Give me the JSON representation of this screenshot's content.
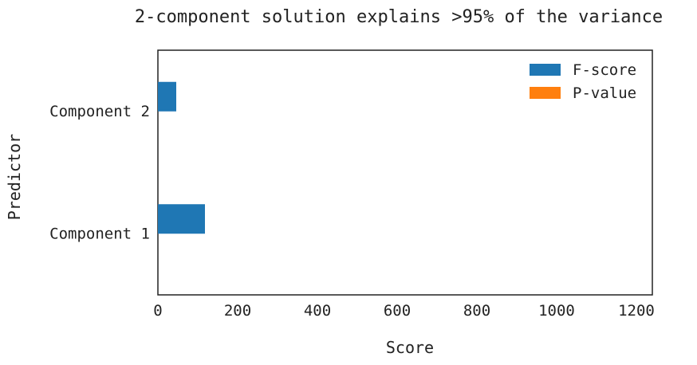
{
  "chart_data": {
    "type": "bar",
    "orientation": "horizontal",
    "title": "2-component solution explains >95% of the variance",
    "xlabel": "Score",
    "ylabel": "Predictor",
    "categories": [
      "Component 1",
      "Component 2"
    ],
    "series": [
      {
        "name": "F-score",
        "values": [
          118,
          46
        ],
        "color": "#1f77b4"
      },
      {
        "name": "P-value",
        "values": [
          0,
          0
        ],
        "color": "#ff7f0e"
      }
    ],
    "xlim": [
      0,
      1240
    ],
    "xticks": [
      0,
      200,
      400,
      600,
      800,
      1000,
      1200
    ],
    "grid": false,
    "legend_position": "top-right"
  }
}
